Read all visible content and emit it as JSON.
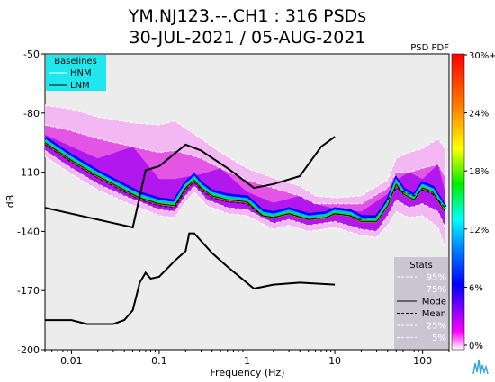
{
  "chart_data": {
    "type": "heatmap",
    "title_line1": "YM.NJ123.--.CH1 : 316 PSDs",
    "title_line2": "30-JUL-2021 / 05-AUG-2021",
    "xlabel": "Frequency (Hz)",
    "ylabel": "dB",
    "x_scale": "log",
    "xlim": [
      0.005,
      200
    ],
    "ylim": [
      -200,
      -50
    ],
    "x_ticks": [
      {
        "value": 0.01,
        "label": "0.01"
      },
      {
        "value": 0.1,
        "label": "0.1"
      },
      {
        "value": 1,
        "label": "1"
      },
      {
        "value": 10,
        "label": "10"
      },
      {
        "value": 100,
        "label": "100"
      }
    ],
    "y_ticks": [
      {
        "value": -50,
        "label": "-50"
      },
      {
        "value": -80,
        "label": "-80"
      },
      {
        "value": -110,
        "label": "-110"
      },
      {
        "value": -140,
        "label": "-140"
      },
      {
        "value": -170,
        "label": "-170"
      },
      {
        "value": -200,
        "label": "-200"
      }
    ],
    "baselines": {
      "title": "Baselines",
      "background": "#1ee8ee",
      "items": [
        {
          "name": "HNM",
          "color": "#ffffff"
        },
        {
          "name": "LNM",
          "color": "#000000"
        }
      ],
      "hnm": [
        [
          0.005,
          -128
        ],
        [
          0.05,
          -138
        ],
        [
          0.07,
          -109
        ],
        [
          0.1,
          -107
        ],
        [
          0.2,
          -96
        ],
        [
          0.3,
          -99
        ],
        [
          0.6,
          -108
        ],
        [
          1.2,
          -118
        ],
        [
          2,
          -116
        ],
        [
          4,
          -112
        ],
        [
          7,
          -97
        ],
        [
          10,
          -92
        ]
      ],
      "lnm": [
        [
          0.005,
          -185
        ],
        [
          0.01,
          -185
        ],
        [
          0.015,
          -187
        ],
        [
          0.03,
          -187
        ],
        [
          0.04,
          -185
        ],
        [
          0.05,
          -180
        ],
        [
          0.06,
          -166
        ],
        [
          0.07,
          -161
        ],
        [
          0.08,
          -164
        ],
        [
          0.1,
          -163
        ],
        [
          0.15,
          -155
        ],
        [
          0.2,
          -150
        ],
        [
          0.22,
          -141
        ],
        [
          0.25,
          -141
        ],
        [
          0.4,
          -151
        ],
        [
          0.6,
          -158
        ],
        [
          1.2,
          -169
        ],
        [
          2,
          -167
        ],
        [
          4,
          -166
        ],
        [
          10,
          -167
        ]
      ]
    },
    "psd_pdf": {
      "label": "PSD PDF",
      "colorbar_ticks": [
        "30%+",
        "24%",
        "18%",
        "12%",
        "6%",
        "0%"
      ],
      "colorbar_colors": [
        "#ff0000",
        "#ff8000",
        "#ffff00",
        "#00ee00",
        "#00ffff",
        "#0080ff",
        "#0000ff",
        "#ff00ff",
        "#ffffff"
      ]
    },
    "stats": {
      "title": "Stats",
      "items": [
        {
          "name": "95%",
          "style": "dashed",
          "color": "#ffffff"
        },
        {
          "name": "75%",
          "style": "dashed",
          "color": "#ffffff"
        },
        {
          "name": "Mode",
          "style": "solid",
          "color": "#000000"
        },
        {
          "name": "Mean",
          "style": "dashed",
          "color": "#000000"
        },
        {
          "name": "25%",
          "style": "dashed",
          "color": "#ffffff"
        },
        {
          "name": "5%",
          "style": "dashed",
          "color": "#ffffff"
        }
      ]
    },
    "mode_curve": [
      [
        0.005,
        -95
      ],
      [
        0.01,
        -104
      ],
      [
        0.02,
        -112
      ],
      [
        0.04,
        -119
      ],
      [
        0.06,
        -123
      ],
      [
        0.1,
        -126
      ],
      [
        0.15,
        -127
      ],
      [
        0.2,
        -118
      ],
      [
        0.25,
        -114
      ],
      [
        0.3,
        -118
      ],
      [
        0.4,
        -122
      ],
      [
        0.6,
        -124
      ],
      [
        1,
        -125
      ],
      [
        1.5,
        -132
      ],
      [
        2,
        -133
      ],
      [
        3,
        -131
      ],
      [
        5,
        -134
      ],
      [
        8,
        -133
      ],
      [
        10,
        -131
      ],
      [
        15,
        -132
      ],
      [
        20,
        -135
      ],
      [
        30,
        -135
      ],
      [
        40,
        -127
      ],
      [
        50,
        -116
      ],
      [
        60,
        -121
      ],
      [
        80,
        -124
      ],
      [
        100,
        -118
      ],
      [
        130,
        -120
      ],
      [
        180,
        -130
      ]
    ],
    "mean_curve": [
      [
        0.005,
        -96
      ],
      [
        0.01,
        -105
      ],
      [
        0.02,
        -113
      ],
      [
        0.04,
        -120
      ],
      [
        0.06,
        -124
      ],
      [
        0.1,
        -127
      ],
      [
        0.15,
        -128
      ],
      [
        0.2,
        -119
      ],
      [
        0.25,
        -115
      ],
      [
        0.3,
        -119
      ],
      [
        0.4,
        -123
      ],
      [
        0.6,
        -125
      ],
      [
        1,
        -126
      ],
      [
        1.5,
        -132
      ],
      [
        2,
        -133
      ],
      [
        3,
        -131
      ],
      [
        5,
        -134
      ],
      [
        8,
        -133
      ],
      [
        10,
        -131
      ],
      [
        15,
        -132
      ],
      [
        20,
        -134
      ],
      [
        30,
        -132
      ],
      [
        40,
        -124
      ],
      [
        50,
        -118
      ],
      [
        60,
        -120
      ],
      [
        80,
        -122
      ],
      [
        100,
        -119
      ],
      [
        130,
        -121
      ],
      [
        180,
        -128
      ]
    ],
    "p95_curve": [
      [
        0.005,
        -76
      ],
      [
        0.01,
        -78
      ],
      [
        0.02,
        -82
      ],
      [
        0.05,
        -85
      ],
      [
        0.1,
        -86
      ],
      [
        0.15,
        -84
      ],
      [
        0.3,
        -93
      ],
      [
        0.5,
        -100
      ],
      [
        1,
        -108
      ],
      [
        2,
        -113
      ],
      [
        4,
        -117
      ],
      [
        6,
        -122
      ],
      [
        10,
        -123
      ],
      [
        20,
        -122
      ],
      [
        40,
        -114
      ],
      [
        50,
        -103
      ],
      [
        70,
        -100
      ],
      [
        100,
        -98
      ],
      [
        150,
        -93
      ],
      [
        180,
        -98
      ]
    ],
    "p75_curve": [
      [
        0.005,
        -86
      ],
      [
        0.01,
        -89
      ],
      [
        0.02,
        -93
      ],
      [
        0.05,
        -97
      ],
      [
        0.1,
        -100
      ],
      [
        0.15,
        -99
      ],
      [
        0.3,
        -103
      ],
      [
        0.5,
        -108
      ],
      [
        1,
        -114
      ],
      [
        2,
        -118
      ],
      [
        4,
        -122
      ],
      [
        6,
        -126
      ],
      [
        10,
        -126
      ],
      [
        20,
        -126
      ],
      [
        40,
        -118
      ],
      [
        50,
        -110
      ],
      [
        70,
        -110
      ],
      [
        100,
        -108
      ],
      [
        150,
        -106
      ],
      [
        180,
        -112
      ]
    ],
    "p25_curve": [
      [
        0.005,
        -99
      ],
      [
        0.01,
        -108
      ],
      [
        0.02,
        -116
      ],
      [
        0.04,
        -122
      ],
      [
        0.1,
        -129
      ],
      [
        0.15,
        -130
      ],
      [
        0.2,
        -122
      ],
      [
        0.25,
        -117
      ],
      [
        0.35,
        -124
      ],
      [
        0.6,
        -128
      ],
      [
        1,
        -129
      ],
      [
        2,
        -136
      ],
      [
        3,
        -134
      ],
      [
        5,
        -137
      ],
      [
        10,
        -135
      ],
      [
        20,
        -139
      ],
      [
        30,
        -140
      ],
      [
        40,
        -132
      ],
      [
        50,
        -124
      ],
      [
        70,
        -128
      ],
      [
        100,
        -126
      ],
      [
        150,
        -130
      ],
      [
        180,
        -138
      ]
    ],
    "p5_curve": [
      [
        0.005,
        -102
      ],
      [
        0.01,
        -111
      ],
      [
        0.02,
        -119
      ],
      [
        0.04,
        -125
      ],
      [
        0.1,
        -132
      ],
      [
        0.15,
        -133
      ],
      [
        0.2,
        -125
      ],
      [
        0.25,
        -120
      ],
      [
        0.35,
        -127
      ],
      [
        0.6,
        -131
      ],
      [
        1,
        -132
      ],
      [
        2,
        -139
      ],
      [
        3,
        -137
      ],
      [
        5,
        -140
      ],
      [
        10,
        -138
      ],
      [
        20,
        -142
      ],
      [
        30,
        -143
      ],
      [
        40,
        -137
      ],
      [
        50,
        -130
      ],
      [
        70,
        -133
      ],
      [
        100,
        -132
      ],
      [
        150,
        -138
      ],
      [
        180,
        -148
      ]
    ]
  }
}
